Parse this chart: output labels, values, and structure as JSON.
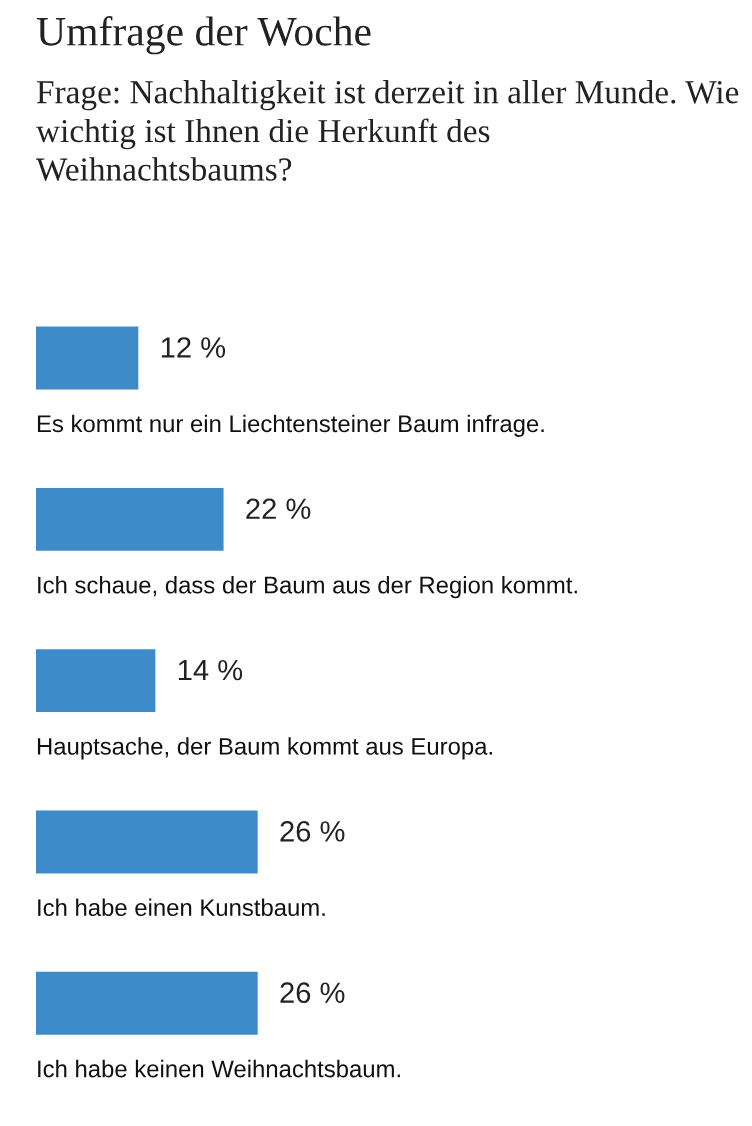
{
  "chart_data": {
    "type": "bar",
    "orientation": "horizontal",
    "title": "Umfrage der Woche",
    "subtitle": "Frage: Nachhaltigkeit ist derzeit in aller Munde. Wie wichtig ist Ihnen die Herkunft des Weihnachtsbaums?",
    "categories": [
      "Es kommt nur ein Liechtensteiner Baum infrage.",
      "Ich schaue, dass der Baum aus der Region kommt.",
      "Hauptsache, der Baum kommt aus Europa.",
      "Ich habe einen Kunstbaum.",
      "Ich habe keinen Weihnachtsbaum."
    ],
    "values": [
      12,
      22,
      14,
      26,
      26
    ],
    "value_labels": [
      "12 %",
      "22 %",
      "14 %",
      "26 %",
      "26 %"
    ],
    "color": "#3d8bc9",
    "tick_labels": false
  }
}
